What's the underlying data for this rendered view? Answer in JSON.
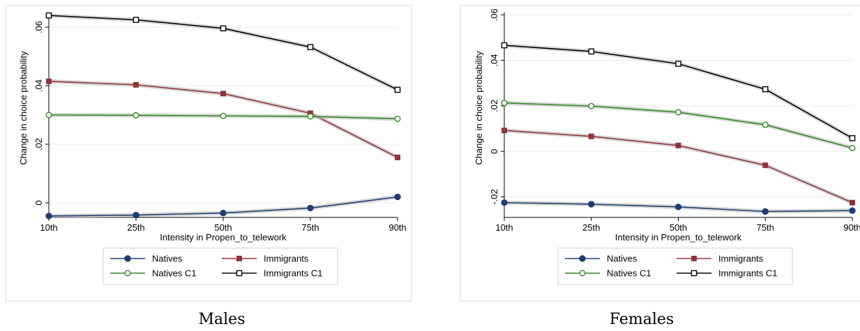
{
  "chart_data": [
    {
      "type": "line",
      "caption": "Males",
      "xlabel": "Intensity in Propen_to_telework",
      "ylabel": "Change in choice probability",
      "categories": [
        "10th",
        "25th",
        "50th",
        "75th",
        "90th"
      ],
      "ylim": [
        -0.005,
        0.065
      ],
      "yticks": [
        0,
        0.02,
        0.04,
        0.06
      ],
      "ytick_labels": [
        "0",
        ".02",
        ".04",
        ".06"
      ],
      "grid": true,
      "legend_position": "bottom",
      "series": [
        {
          "name": "Natives",
          "values": [
            -0.0045,
            -0.0042,
            -0.0035,
            -0.0018,
            0.002
          ],
          "color": "#1f3f6e",
          "marker": "filled-circle"
        },
        {
          "name": "Immigrants",
          "values": [
            0.0415,
            0.0403,
            0.0373,
            0.0306,
            0.0155
          ],
          "color": "#90353b",
          "marker": "filled-square"
        },
        {
          "name": "Natives C1",
          "values": [
            0.03,
            0.0299,
            0.0297,
            0.0295,
            0.0287
          ],
          "color": "#2e8b20",
          "marker": "hollow-circle"
        },
        {
          "name": "Immigrants C1",
          "values": [
            0.064,
            0.0625,
            0.0596,
            0.0532,
            0.0386
          ],
          "color": "#000000",
          "marker": "hollow-square"
        }
      ]
    },
    {
      "type": "line",
      "caption": "Females",
      "xlabel": "Intensity in Propen_to_telework",
      "ylabel": "Change in choice probability",
      "categories": [
        "10th",
        "25th",
        "50th",
        "75th",
        "90th"
      ],
      "ylim": [
        -0.029,
        0.061
      ],
      "yticks": [
        -0.02,
        0,
        0.02,
        0.04,
        0.06
      ],
      "ytick_labels": [
        "-.02",
        "0",
        ".02",
        ".04",
        ".06"
      ],
      "grid": true,
      "legend_position": "bottom",
      "series": [
        {
          "name": "Natives",
          "values": [
            -0.0225,
            -0.0232,
            -0.0244,
            -0.0264,
            -0.026
          ],
          "color": "#1f3f6e",
          "marker": "filled-circle"
        },
        {
          "name": "Immigrants",
          "values": [
            0.0092,
            0.0066,
            0.0026,
            -0.0061,
            -0.0225
          ],
          "color": "#90353b",
          "marker": "filled-square"
        },
        {
          "name": "Natives C1",
          "values": [
            0.0213,
            0.0199,
            0.0172,
            0.0117,
            0.0015
          ],
          "color": "#2e8b20",
          "marker": "hollow-circle"
        },
        {
          "name": "Immigrants C1",
          "values": [
            0.0466,
            0.0439,
            0.0385,
            0.0273,
            0.0058
          ],
          "color": "#000000",
          "marker": "hollow-square"
        }
      ]
    }
  ]
}
